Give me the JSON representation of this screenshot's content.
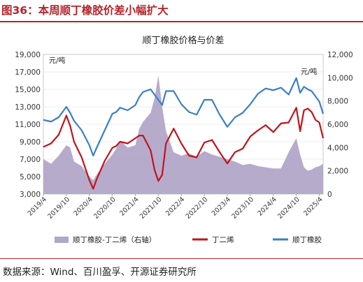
{
  "header": {
    "figure_title": "图36：本周顺丁橡胶价差小幅扩大"
  },
  "footer": {
    "source": "数据来源：Wind、百川盈孚、开源证券研究所"
  },
  "colors": {
    "accent_red": "#b4232b",
    "spread_fill": "#b3a6c9",
    "butadiene_line": "#c0141c",
    "br_rubber_line": "#3a7fc8",
    "grid": "#d9d9d9"
  },
  "chart_data": {
    "type": "line",
    "title": "顺丁橡胶价格与价差",
    "left_axis": {
      "unit": "元/吨",
      "ylim": [
        3000,
        19000
      ],
      "ticks": [
        "3,000",
        "5,000",
        "7,000",
        "9,000",
        "11,000",
        "13,000",
        "15,000",
        "17,000",
        "19,000"
      ],
      "tick_values": [
        3000,
        5000,
        7000,
        9000,
        11000,
        13000,
        15000,
        17000,
        19000
      ]
    },
    "right_axis": {
      "unit": "元/吨",
      "ylim": [
        0,
        12000
      ],
      "ticks": [
        "0",
        "2,000",
        "4,000",
        "6,000",
        "8,000",
        "10,000",
        "12,000"
      ],
      "tick_values": [
        0,
        2000,
        4000,
        6000,
        8000,
        10000,
        12000
      ]
    },
    "x_tick_labels": [
      "2019/4",
      "2019/10",
      "2020/4",
      "2020/10",
      "2021/4",
      "2021/10",
      "2022/4",
      "2022/10",
      "2023/4",
      "2023/10",
      "2024/4",
      "2024/10",
      "2025/4"
    ],
    "x_tick_months": [
      0,
      6,
      12,
      18,
      24,
      30,
      36,
      42,
      48,
      54,
      60,
      66,
      72
    ],
    "x_range_months": [
      0,
      73
    ],
    "legend_position": "bottom",
    "x_months": [
      0,
      2,
      4,
      6,
      7,
      8,
      10,
      12,
      13,
      14,
      16,
      18,
      19,
      20,
      22,
      24,
      25,
      26,
      28,
      29,
      30,
      31,
      32,
      34,
      36,
      38,
      40,
      42,
      44,
      46,
      48,
      50,
      52,
      54,
      56,
      58,
      60,
      62,
      64,
      66,
      67,
      68,
      69,
      70,
      71,
      72,
      73
    ],
    "series": [
      {
        "name": "顺丁橡胶-丁二烯（右轴）",
        "axis": "right",
        "type": "area",
        "values": [
          3000,
          2600,
          3300,
          4200,
          4000,
          2800,
          2400,
          1500,
          1200,
          1700,
          2600,
          3400,
          3900,
          4600,
          4000,
          4200,
          5600,
          6200,
          7000,
          8200,
          10200,
          7500,
          5400,
          3600,
          3300,
          3500,
          3200,
          3700,
          3400,
          3200,
          3000,
          2800,
          2500,
          2600,
          2400,
          2300,
          2200,
          2200,
          3600,
          4800,
          3400,
          2300,
          2000,
          2100,
          2300,
          2400,
          2600
        ]
      },
      {
        "name": "丁二烯",
        "axis": "left",
        "type": "line",
        "values": [
          8400,
          8800,
          9800,
          12000,
          10800,
          9000,
          7200,
          4600,
          3600,
          4800,
          6800,
          8300,
          8500,
          9000,
          8800,
          9400,
          9700,
          9700,
          8000,
          5800,
          4500,
          5200,
          8800,
          10500,
          8800,
          7400,
          7200,
          8900,
          9200,
          7800,
          6500,
          7800,
          8200,
          9600,
          10300,
          10900,
          10100,
          11100,
          11200,
          12900,
          10200,
          12600,
          12800,
          12400,
          11500,
          11200,
          9400
        ]
      },
      {
        "name": "顺丁橡胶",
        "axis": "left",
        "type": "line",
        "values": [
          11500,
          11300,
          11800,
          13000,
          12300,
          11400,
          10300,
          8600,
          7400,
          8400,
          10300,
          12200,
          12400,
          12900,
          12600,
          13200,
          14100,
          14700,
          15000,
          14400,
          13800,
          13200,
          14800,
          14800,
          13300,
          12400,
          12100,
          13800,
          13800,
          12100,
          10700,
          11800,
          12300,
          13300,
          14500,
          15100,
          14900,
          15200,
          14400,
          16300,
          14600,
          15300,
          15000,
          14800,
          14200,
          13600,
          12200
        ]
      }
    ],
    "legend": [
      {
        "label": "顺丁橡胶-丁二烯（右轴）",
        "kind": "area"
      },
      {
        "label": "丁二烯",
        "kind": "line"
      },
      {
        "label": "顺丁橡胶",
        "kind": "line"
      }
    ]
  }
}
